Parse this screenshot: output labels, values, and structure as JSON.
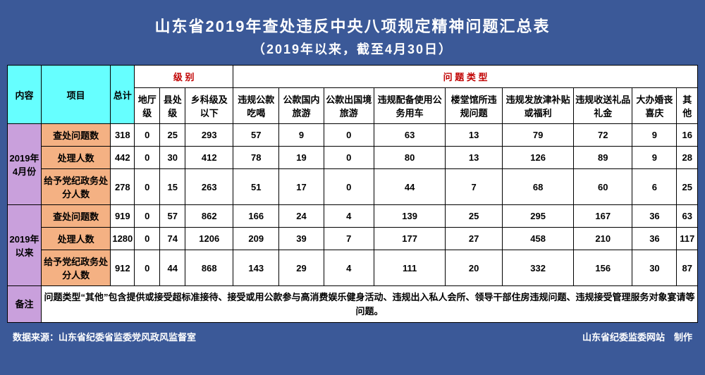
{
  "colors": {
    "page_bg": "#3b5998",
    "title_text": "#ffffff",
    "border": "#000000",
    "cyan": "#66ffff",
    "purple": "#c9a0dc",
    "orange": "#f4b183",
    "red_text": "#c00000",
    "cell_bg": "#ffffff"
  },
  "title": "山东省2019年查处违反中央八项规定精神问题汇总表",
  "subtitle": "（2019年以来，截至4月30日）",
  "headers": {
    "content": "内容",
    "project": "项目",
    "total": "总计",
    "level_group": "级 别",
    "type_group": "问 题 类 型",
    "levels": [
      "地厅级",
      "县处级",
      "乡科级及以下"
    ],
    "types": [
      "违规公款吃喝",
      "公款国内旅游",
      "公款出国境旅游",
      "违规配备使用公务用车",
      "楼堂馆所违规问题",
      "违规发放津补贴或福利",
      "违规收送礼品礼金",
      "大办婚丧喜庆",
      "其他"
    ]
  },
  "periods": [
    {
      "label": "2019年4月份",
      "rows": [
        {
          "label": "查处问题数",
          "total": "318",
          "cells": [
            "0",
            "25",
            "293",
            "57",
            "9",
            "0",
            "63",
            "13",
            "79",
            "72",
            "9",
            "16"
          ]
        },
        {
          "label": "处理人数",
          "total": "442",
          "cells": [
            "0",
            "30",
            "412",
            "78",
            "19",
            "0",
            "80",
            "13",
            "126",
            "89",
            "9",
            "28"
          ]
        },
        {
          "label": "给予党纪政务处分人数",
          "total": "278",
          "cells": [
            "0",
            "15",
            "263",
            "51",
            "17",
            "0",
            "44",
            "7",
            "68",
            "60",
            "6",
            "25"
          ]
        }
      ]
    },
    {
      "label": "2019年以来",
      "rows": [
        {
          "label": "查处问题数",
          "total": "919",
          "cells": [
            "0",
            "57",
            "862",
            "166",
            "24",
            "4",
            "139",
            "25",
            "295",
            "167",
            "36",
            "63"
          ]
        },
        {
          "label": "处理人数",
          "total": "1280",
          "cells": [
            "0",
            "74",
            "1206",
            "209",
            "39",
            "7",
            "177",
            "27",
            "458",
            "210",
            "36",
            "117"
          ]
        },
        {
          "label": "给予党纪政务处分人数",
          "total": "912",
          "cells": [
            "0",
            "44",
            "868",
            "143",
            "29",
            "4",
            "111",
            "20",
            "332",
            "156",
            "30",
            "87"
          ]
        }
      ]
    }
  ],
  "note": {
    "label": "备注",
    "text": "问题类型“其他”包含提供或接受超标准接待、接受或用公款参与高消费娱乐健身活动、违规出入私人会所、领导干部住房违规问题、违规接受管理服务对象宴请等问题。"
  },
  "footer": {
    "left": "数据来源：山东省纪委省监委党风政风监督室",
    "right": "山东省纪委监委网站　制作"
  }
}
